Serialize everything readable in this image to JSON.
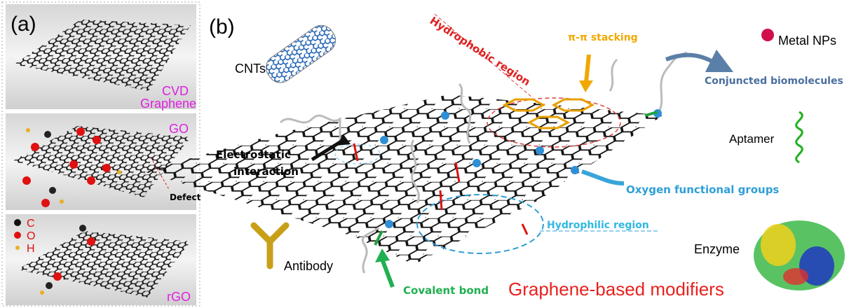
{
  "panel_a": {
    "label": "(a)",
    "cvd": [
      "CVD",
      "Graphene"
    ],
    "go": "GO",
    "defect": "Defect",
    "legend": [
      "C",
      "O",
      "H"
    ],
    "rgo": "rGO"
  },
  "panel_b": {
    "label": "(b)",
    "cnts": "CNTs",
    "hydrophobic": "Hydrophobic region",
    "pi_stacking": "π-π stacking",
    "metal_nps": "Metal NPs",
    "biomolecules": "Conjuncted biomolecules",
    "electrostatic": [
      "Electrostatic",
      "interaction"
    ],
    "aptamer": "Aptamer",
    "oxygen_groups": "Oxygen functional groups",
    "hydrophilic": "Hydrophilic region",
    "enzyme": "Enzyme",
    "antibody": "Antibody",
    "covalent": "Covalent bond",
    "caption": "Graphene-based modifiers"
  }
}
